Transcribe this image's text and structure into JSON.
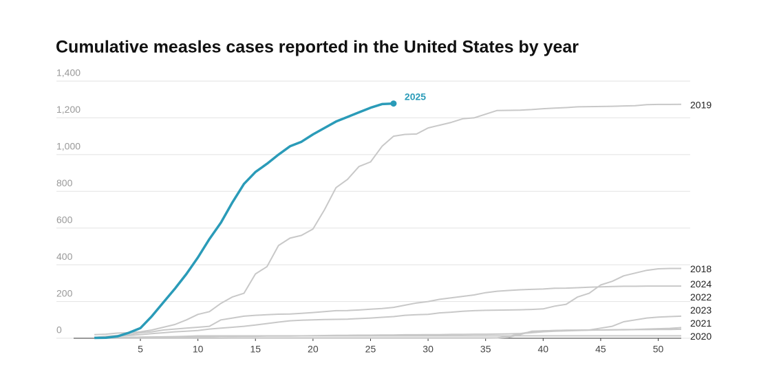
{
  "chart_data": {
    "type": "line",
    "title": "Cumulative measles cases reported in the United States by year",
    "x": [
      1,
      2,
      3,
      4,
      5,
      6,
      7,
      8,
      9,
      10,
      11,
      12,
      13,
      14,
      15,
      16,
      17,
      18,
      19,
      20,
      21,
      22,
      23,
      24,
      25,
      26,
      27,
      28,
      29,
      30,
      31,
      32,
      33,
      34,
      35,
      36,
      37,
      38,
      39,
      40,
      41,
      42,
      43,
      44,
      45,
      46,
      47,
      48,
      49,
      50,
      51,
      52
    ],
    "xlim": [
      -0.8,
      52
    ],
    "xticks": [
      5,
      10,
      15,
      20,
      25,
      30,
      35,
      40,
      45,
      50
    ],
    "ylim": [
      0,
      1400
    ],
    "yticks": [
      0,
      200,
      400,
      600,
      800,
      {
        "value": 1000,
        "label": "1,000"
      },
      {
        "value": 1200,
        "label": "1,200"
      },
      {
        "value": 1400,
        "label": "1,400"
      }
    ],
    "grid": true,
    "series": [
      {
        "name": "2020",
        "color": "#c8c8c8",
        "values": [
          2,
          3,
          4,
          5,
          6,
          7,
          8,
          9,
          11,
          13,
          13,
          13,
          13,
          13,
          13,
          13,
          13,
          13,
          13,
          13,
          13,
          13,
          13,
          13,
          13,
          13,
          13,
          13,
          13,
          13,
          13,
          13,
          13,
          13,
          13,
          13,
          13,
          13,
          13,
          13,
          13,
          13,
          13,
          13,
          13,
          13,
          13,
          13,
          13,
          13,
          13,
          13
        ]
      },
      {
        "name": "2021",
        "color": "#c8c8c8",
        "values": [
          1,
          1,
          1,
          1,
          1,
          1,
          1,
          1,
          1,
          1,
          1,
          1,
          2,
          2,
          2,
          2,
          2,
          2,
          2,
          2,
          2,
          2,
          2,
          2,
          2,
          2,
          2,
          2,
          2,
          2,
          2,
          2,
          2,
          2,
          2,
          2,
          5,
          20,
          38,
          40,
          42,
          44,
          44,
          45,
          45,
          46,
          46,
          47,
          47,
          48,
          48,
          49
        ]
      },
      {
        "name": "2023",
        "color": "#c8c8c8",
        "values": [
          2,
          3,
          4,
          5,
          6,
          6,
          7,
          8,
          8,
          9,
          9,
          10,
          10,
          11,
          11,
          12,
          12,
          12,
          13,
          14,
          15,
          16,
          16,
          17,
          17,
          18,
          18,
          19,
          19,
          20,
          20,
          21,
          21,
          22,
          22,
          23,
          24,
          26,
          30,
          35,
          38,
          40,
          42,
          44,
          45,
          46,
          47,
          48,
          50,
          52,
          54,
          58
        ]
      },
      {
        "name": "2022",
        "color": "#c8c8c8",
        "values": [
          1,
          1,
          1,
          1,
          1,
          1,
          1,
          1,
          1,
          1,
          1,
          1,
          1,
          1,
          1,
          1,
          1,
          1,
          1,
          1,
          1,
          1,
          1,
          1,
          1,
          1,
          1,
          1,
          1,
          1,
          1,
          1,
          1,
          1,
          1,
          2,
          10,
          25,
          35,
          40,
          42,
          43,
          44,
          45,
          55,
          65,
          90,
          100,
          110,
          115,
          118,
          120
        ]
      },
      {
        "name": "2024",
        "color": "#c8c8c8",
        "values": [
          5,
          10,
          15,
          20,
          30,
          35,
          45,
          50,
          55,
          60,
          65,
          100,
          110,
          120,
          125,
          128,
          131,
          132,
          136,
          140,
          145,
          150,
          151,
          154,
          158,
          162,
          168,
          180,
          192,
          200,
          212,
          220,
          228,
          236,
          248,
          256,
          260,
          264,
          266,
          268,
          272,
          273,
          275,
          278,
          280,
          282,
          283,
          283,
          284,
          284,
          284,
          284
        ]
      },
      {
        "name": "2018",
        "color": "#c8c8c8",
        "values": [
          5,
          8,
          12,
          15,
          20,
          25,
          30,
          35,
          38,
          42,
          50,
          55,
          60,
          65,
          72,
          80,
          88,
          95,
          98,
          100,
          102,
          103,
          104,
          107,
          110,
          114,
          118,
          125,
          128,
          130,
          138,
          142,
          147,
          150,
          152,
          153,
          154,
          155,
          157,
          160,
          175,
          185,
          225,
          245,
          290,
          310,
          340,
          355,
          370,
          378,
          380,
          380
        ]
      },
      {
        "name": "2019",
        "color": "#c8c8c8",
        "values": [
          20,
          22,
          28,
          30,
          35,
          45,
          60,
          75,
          100,
          130,
          145,
          190,
          225,
          245,
          350,
          390,
          505,
          545,
          560,
          595,
          700,
          820,
          865,
          935,
          960,
          1045,
          1100,
          1110,
          1112,
          1145,
          1160,
          1175,
          1195,
          1200,
          1220,
          1240,
          1241,
          1242,
          1245,
          1250,
          1253,
          1256,
          1260,
          1261,
          1262,
          1263,
          1265,
          1266,
          1272,
          1273,
          1273,
          1274
        ]
      },
      {
        "name": "2025",
        "color": "#2a9bb8",
        "values": [
          2,
          3,
          10,
          30,
          55,
          120,
          195,
          270,
          350,
          440,
          540,
          630,
          740,
          840,
          905,
          950,
          1000,
          1045,
          1070,
          1110,
          1145,
          1180,
          1205,
          1230,
          1255,
          1275,
          1278,
          null,
          null,
          null,
          null,
          null,
          null,
          null,
          null,
          null,
          null,
          null,
          null,
          null,
          null,
          null,
          null,
          null,
          null,
          null,
          null,
          null,
          null,
          null,
          null,
          null
        ]
      }
    ]
  }
}
